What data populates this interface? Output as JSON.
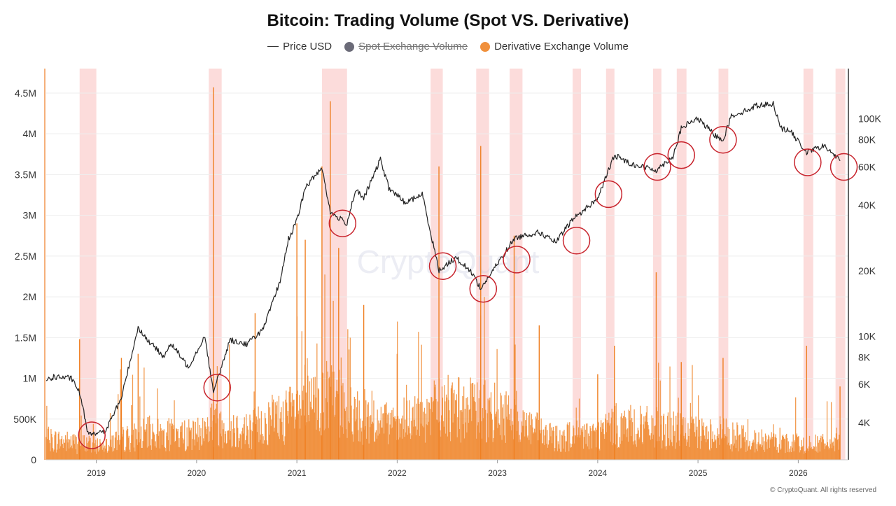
{
  "chart_data": {
    "type": "bar",
    "title": "Bitcoin: Trading Volume (Spot VS. Derivative)",
    "legend": {
      "placement": "top-center",
      "items": [
        {
          "label": "Price USD",
          "marker": "line",
          "color": "#333333",
          "enabled": true
        },
        {
          "label": "Spot Exchange Volume",
          "marker": "dot",
          "color": "#6b6b78",
          "enabled": false
        },
        {
          "label": "Derivative Exchange Volume",
          "marker": "dot",
          "color": "#f0903c",
          "enabled": true
        }
      ]
    },
    "x_axis": {
      "range": [
        "2018-07",
        "2026-07"
      ],
      "tick_labels": [
        "2019",
        "2020",
        "2021",
        "2022",
        "2023",
        "2024",
        "2025",
        "2026"
      ]
    },
    "y_left": {
      "range": [
        0,
        4800000
      ],
      "ticks": [
        0,
        500000,
        1000000,
        1500000,
        2000000,
        2500000,
        3000000,
        3500000,
        4000000,
        4500000
      ],
      "tick_labels": [
        "0",
        "500K",
        "1M",
        "1.5M",
        "2M",
        "2.5M",
        "3M",
        "3.5M",
        "4M",
        "4.5M"
      ]
    },
    "y_right": {
      "scale": "log",
      "range": [
        2700,
        170000
      ],
      "ticks": [
        4000,
        6000,
        8000,
        10000,
        20000,
        40000,
        60000,
        80000,
        100000
      ],
      "tick_labels": [
        "4K",
        "6K",
        "8K",
        "10K",
        "20K",
        "40K",
        "60K",
        "80K",
        "100K"
      ]
    },
    "price_series": {
      "name": "Price USD",
      "x": [
        "2018-07",
        "2018-08",
        "2018-10",
        "2018-11",
        "2018-12",
        "2019-02",
        "2019-04",
        "2019-06",
        "2019-07",
        "2019-09",
        "2019-10",
        "2019-12",
        "2020-02",
        "2020-03",
        "2020-05",
        "2020-07",
        "2020-09",
        "2020-11",
        "2020-12",
        "2021-01",
        "2021-02",
        "2021-04",
        "2021-05",
        "2021-07",
        "2021-08",
        "2021-09",
        "2021-11",
        "2021-12",
        "2022-02",
        "2022-04",
        "2022-05",
        "2022-06",
        "2022-08",
        "2022-10",
        "2022-11",
        "2023-01",
        "2023-03",
        "2023-04",
        "2023-06",
        "2023-08",
        "2023-10",
        "2023-11",
        "2024-01",
        "2024-03",
        "2024-05",
        "2024-08",
        "2024-10",
        "2024-11",
        "2024-12",
        "2025-01",
        "2025-03",
        "2025-04",
        "2025-05",
        "2025-07",
        "2025-08",
        "2025-10",
        "2025-11",
        "2025-12",
        "2026-02",
        "2026-04",
        "2026-05",
        "2026-06"
      ],
      "y": [
        6300,
        6500,
        6400,
        5500,
        3600,
        3600,
        5200,
        11000,
        9700,
        8100,
        9200,
        7200,
        10000,
        5500,
        9600,
        9200,
        10800,
        18000,
        28000,
        34000,
        48000,
        60000,
        37000,
        33000,
        47000,
        43000,
        65000,
        48000,
        41000,
        45000,
        30000,
        20000,
        23000,
        19500,
        16500,
        21500,
        28000,
        29000,
        30000,
        27000,
        34500,
        37000,
        43000,
        68000,
        62000,
        58000,
        67000,
        90000,
        96000,
        100000,
        84000,
        80000,
        103000,
        110000,
        115000,
        117000,
        90000,
        88000,
        70000,
        75000,
        70000,
        64000
      ]
    },
    "volume_envelope": {
      "name": "Derivative Exchange Volume",
      "x": [
        "2018-07",
        "2019-01",
        "2019-07",
        "2020-01",
        "2020-03",
        "2020-07",
        "2021-01",
        "2021-05",
        "2021-07",
        "2022-01",
        "2022-06",
        "2022-11",
        "2023-03",
        "2023-07",
        "2024-01",
        "2024-03",
        "2024-08",
        "2025-01",
        "2025-04",
        "2025-07",
        "2026-01",
        "2026-06"
      ],
      "y": [
        330000,
        240000,
        420000,
        400000,
        600000,
        480000,
        780000,
        1000000,
        800000,
        500000,
        850000,
        800000,
        700000,
        360000,
        420000,
        560000,
        520000,
        420000,
        450000,
        320000,
        260000,
        260000
      ]
    },
    "volume_spikes": {
      "x": [
        "2018-11",
        "2019-04",
        "2019-06",
        "2020-03",
        "2020-08",
        "2021-01",
        "2021-02",
        "2021-04",
        "2021-05",
        "2021-06",
        "2021-09",
        "2022-01",
        "2022-06",
        "2022-11",
        "2023-03",
        "2023-06",
        "2024-01",
        "2024-03",
        "2024-08",
        "2024-11",
        "2025-04",
        "2026-02",
        "2026-06"
      ],
      "y": [
        1480000,
        1250000,
        1300000,
        4570000,
        1800000,
        2900000,
        2700000,
        3600000,
        4400000,
        2600000,
        1900000,
        1300000,
        3600000,
        3850000,
        2750000,
        1650000,
        1050000,
        1400000,
        2300000,
        1200000,
        1250000,
        1400000,
        900000
      ]
    },
    "highlight_periods": [
      [
        "2018-11-01",
        "2019-01-01"
      ],
      [
        "2020-02-15",
        "2020-04-01"
      ],
      [
        "2021-04-01",
        "2021-07-01"
      ],
      [
        "2022-05-01",
        "2022-06-15"
      ],
      [
        "2022-10-15",
        "2022-12-01"
      ],
      [
        "2023-02-15",
        "2023-04-01"
      ],
      [
        "2023-10-01",
        "2023-11-01"
      ],
      [
        "2024-02-01",
        "2024-03-01"
      ],
      [
        "2024-07-20",
        "2024-08-20"
      ],
      [
        "2024-10-15",
        "2024-11-20"
      ],
      [
        "2025-03-15",
        "2025-04-20"
      ],
      [
        "2026-01-20",
        "2026-02-25"
      ],
      [
        "2026-05-15",
        "2026-06-20"
      ]
    ],
    "circled_points": [
      {
        "x": "2018-12-15",
        "price": 3500
      },
      {
        "x": "2020-03-15",
        "price": 5800
      },
      {
        "x": "2021-06-15",
        "price": 33000
      },
      {
        "x": "2022-06-15",
        "price": 21000
      },
      {
        "x": "2022-11-10",
        "price": 16500
      },
      {
        "x": "2023-03-10",
        "price": 22500
      },
      {
        "x": "2023-10-15",
        "price": 27500
      },
      {
        "x": "2024-02-10",
        "price": 45000
      },
      {
        "x": "2024-08-05",
        "price": 60000
      },
      {
        "x": "2024-11-01",
        "price": 68000
      },
      {
        "x": "2025-04-01",
        "price": 80000
      },
      {
        "x": "2026-02-05",
        "price": 63000
      },
      {
        "x": "2026-06-15",
        "price": 60000
      }
    ],
    "grid": "horizontal",
    "watermark": "CryptoQuant",
    "footer": "© CryptoQuant. All rights reserved"
  }
}
